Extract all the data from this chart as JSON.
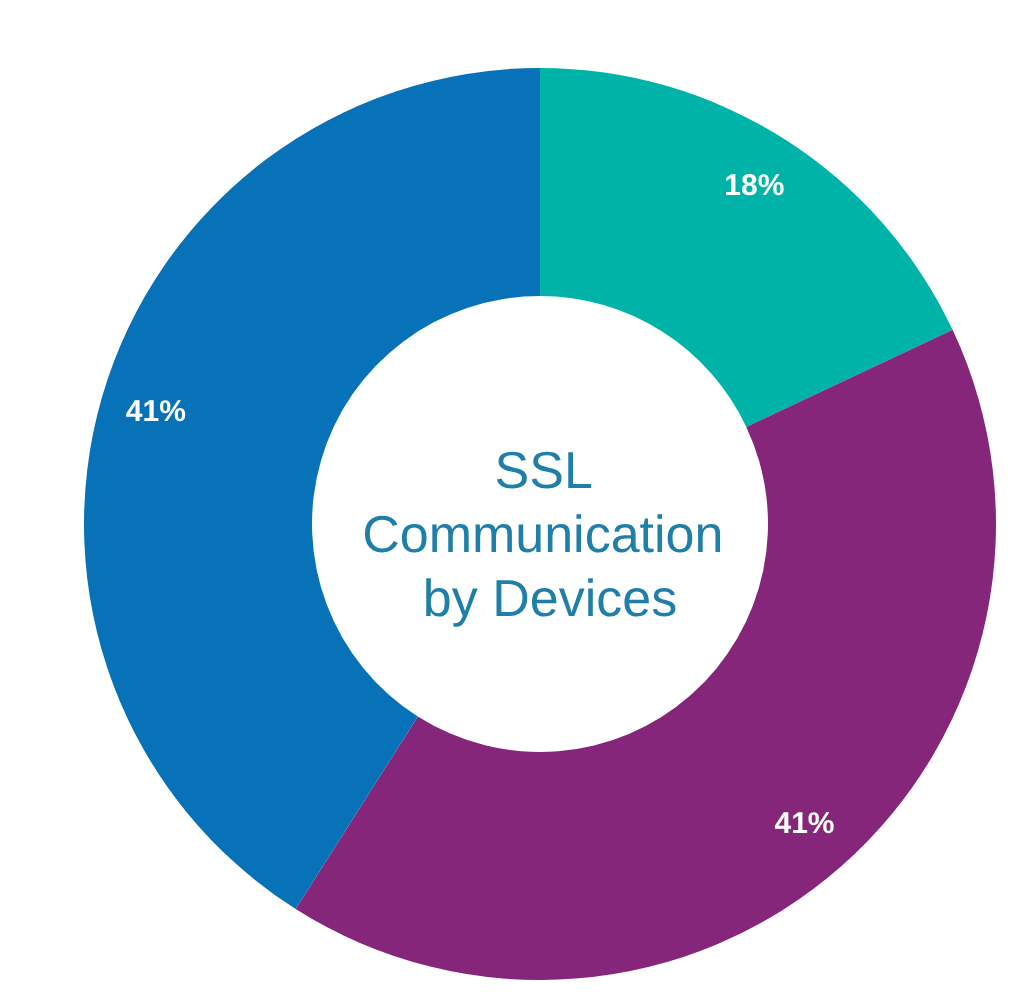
{
  "chart_data": {
    "type": "donut",
    "title": "SSL Communication by Devices",
    "categories": [
      null,
      null,
      null
    ],
    "values": [
      18,
      41,
      41
    ],
    "colors": [
      "#00b3a9",
      "#85267b",
      "#0872b8"
    ],
    "value_labels": [
      "18%",
      "41%",
      "41%"
    ]
  }
}
